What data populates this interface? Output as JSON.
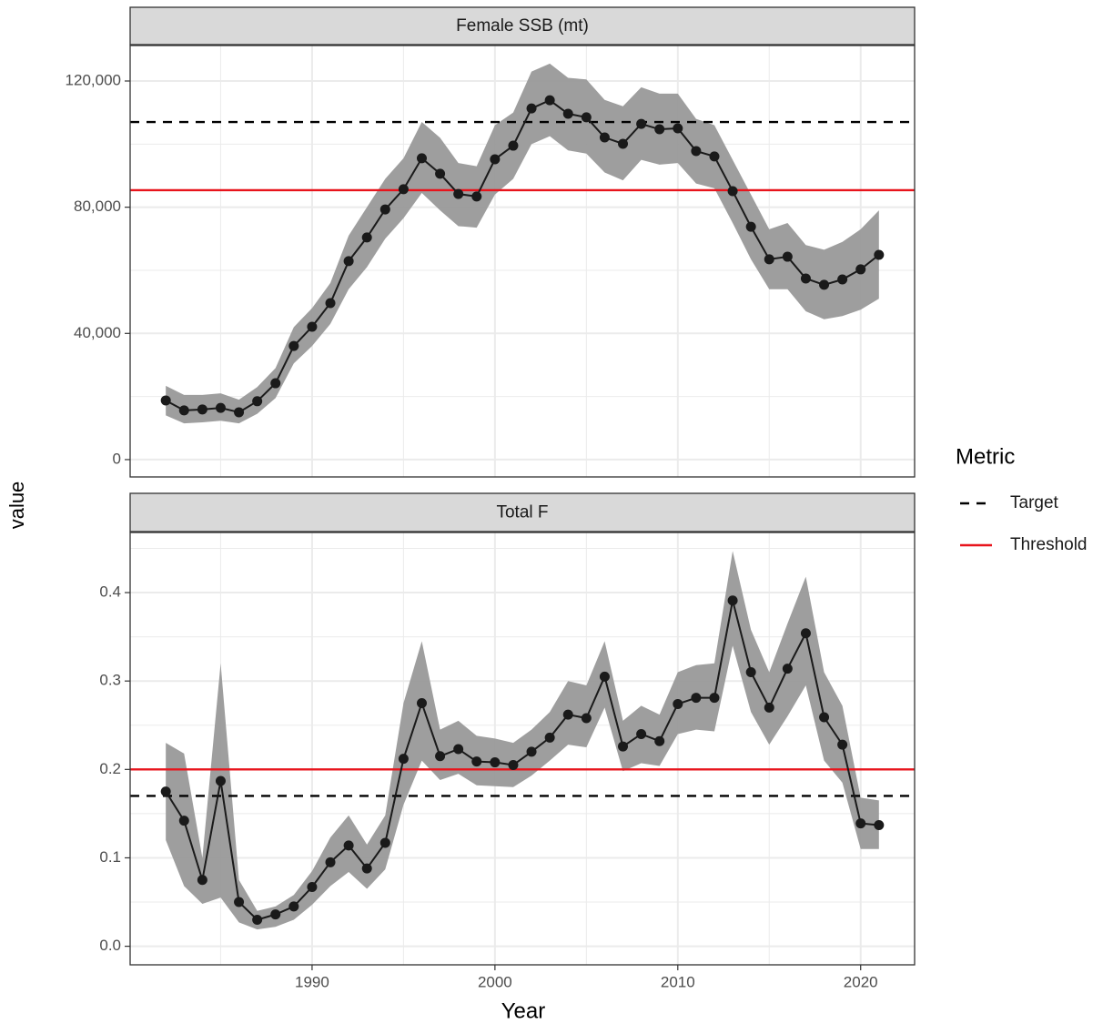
{
  "chart_data": [
    {
      "type": "line",
      "title": "Female SSB (mt)",
      "x": [
        1982,
        1983,
        1984,
        1985,
        1986,
        1987,
        1988,
        1989,
        1990,
        1991,
        1992,
        1993,
        1994,
        1995,
        1996,
        1997,
        1998,
        1999,
        2000,
        2001,
        2002,
        2003,
        2004,
        2005,
        2006,
        2007,
        2008,
        2009,
        2010,
        2011,
        2012,
        2013,
        2014,
        2015,
        2016,
        2017,
        2018,
        2019,
        2020,
        2021
      ],
      "series": [
        {
          "color": "#1a1a1a",
          "band_color": "#999999",
          "values": [
            18750,
            15600,
            15900,
            16400,
            15000,
            18500,
            24200,
            36000,
            42100,
            49600,
            62900,
            70400,
            79300,
            85700,
            95500,
            90600,
            84200,
            83400,
            95200,
            99500,
            111300,
            113900,
            109600,
            108500,
            102100,
            100100,
            106400,
            104700,
            105000,
            97800,
            96100,
            85100,
            73800,
            63500,
            64300,
            57400,
            55400,
            57100,
            60300,
            64900
          ],
          "upper": [
            23400,
            20500,
            20500,
            21000,
            19000,
            23000,
            29000,
            42000,
            48000,
            56000,
            71000,
            80000,
            89000,
            95500,
            107000,
            102000,
            94000,
            93000,
            106000,
            110000,
            123000,
            125500,
            121000,
            120500,
            114000,
            112000,
            118000,
            116000,
            116000,
            108000,
            106000,
            95000,
            84000,
            73000,
            75000,
            68000,
            66500,
            69000,
            73000,
            79000
          ],
          "lower": [
            14000,
            11500,
            11800,
            12300,
            11500,
            14500,
            19500,
            30500,
            36000,
            43000,
            54000,
            61000,
            70000,
            76500,
            84500,
            79000,
            74000,
            73500,
            84000,
            89000,
            100000,
            102500,
            98000,
            97000,
            91000,
            88500,
            95000,
            93500,
            94000,
            87500,
            86000,
            75000,
            63500,
            54000,
            54000,
            47000,
            44500,
            45500,
            47500,
            51000
          ]
        }
      ],
      "reference_lines": [
        {
          "name": "Target",
          "value": 107000,
          "color": "#000000",
          "dashed": true
        },
        {
          "name": "Threshold",
          "value": 85400,
          "color": "#e8141c",
          "dashed": false
        }
      ],
      "xlim": [
        1980.05,
        2022.95
      ],
      "xticks": [
        1990,
        2000,
        2010,
        2020
      ],
      "ylim": [
        -5500,
        131250
      ],
      "yticks": [
        0,
        {
          "value": 40000,
          "label": "40,000"
        },
        {
          "value": 80000,
          "label": "80,000"
        },
        {
          "value": 120000,
          "label": "120,000"
        }
      ],
      "grid": true
    },
    {
      "type": "line",
      "title": "Total F",
      "x": [
        1982,
        1983,
        1984,
        1985,
        1986,
        1987,
        1988,
        1989,
        1990,
        1991,
        1992,
        1993,
        1994,
        1995,
        1996,
        1997,
        1998,
        1999,
        2000,
        2001,
        2002,
        2003,
        2004,
        2005,
        2006,
        2007,
        2008,
        2009,
        2010,
        2011,
        2012,
        2013,
        2014,
        2015,
        2016,
        2017,
        2018,
        2019,
        2020,
        2021
      ],
      "series": [
        {
          "color": "#1a1a1a",
          "band_color": "#999999",
          "values": [
            0.175,
            0.142,
            0.075,
            0.187,
            0.05,
            0.03,
            0.036,
            0.045,
            0.067,
            0.095,
            0.114,
            0.088,
            0.117,
            0.212,
            0.275,
            0.215,
            0.223,
            0.209,
            0.208,
            0.205,
            0.22,
            0.236,
            0.262,
            0.258,
            0.305,
            0.226,
            0.24,
            0.232,
            0.274,
            0.281,
            0.281,
            0.391,
            0.31,
            0.27,
            0.314,
            0.354,
            0.259,
            0.228,
            0.139,
            0.137
          ],
          "upper": [
            0.23,
            0.218,
            0.1,
            0.32,
            0.075,
            0.04,
            0.045,
            0.058,
            0.085,
            0.123,
            0.148,
            0.115,
            0.148,
            0.275,
            0.345,
            0.245,
            0.255,
            0.238,
            0.235,
            0.23,
            0.245,
            0.265,
            0.3,
            0.295,
            0.345,
            0.255,
            0.272,
            0.262,
            0.31,
            0.318,
            0.32,
            0.447,
            0.358,
            0.31,
            0.365,
            0.418,
            0.31,
            0.272,
            0.168,
            0.165
          ],
          "lower": [
            0.12,
            0.068,
            0.048,
            0.055,
            0.027,
            0.019,
            0.022,
            0.03,
            0.047,
            0.068,
            0.084,
            0.065,
            0.087,
            0.16,
            0.21,
            0.188,
            0.195,
            0.182,
            0.181,
            0.18,
            0.193,
            0.21,
            0.228,
            0.225,
            0.27,
            0.198,
            0.207,
            0.204,
            0.24,
            0.245,
            0.243,
            0.34,
            0.265,
            0.228,
            0.26,
            0.295,
            0.21,
            0.185,
            0.11,
            0.11
          ]
        }
      ],
      "reference_lines": [
        {
          "name": "Target",
          "value": 0.17,
          "color": "#000000",
          "dashed": true
        },
        {
          "name": "Threshold",
          "value": 0.2,
          "color": "#e8141c",
          "dashed": false
        }
      ],
      "xlim": [
        1980.05,
        2022.95
      ],
      "xticks": [
        1990,
        2000,
        2010,
        2020
      ],
      "ylim": [
        -0.021,
        0.468
      ],
      "yticks": [
        {
          "value": 0,
          "label": "0.0"
        },
        0.1,
        0.2,
        0.3,
        0.4
      ],
      "grid": true
    }
  ],
  "x_label": "Year",
  "y_label": "value",
  "legend_title": "Metric",
  "legend_position": "right"
}
